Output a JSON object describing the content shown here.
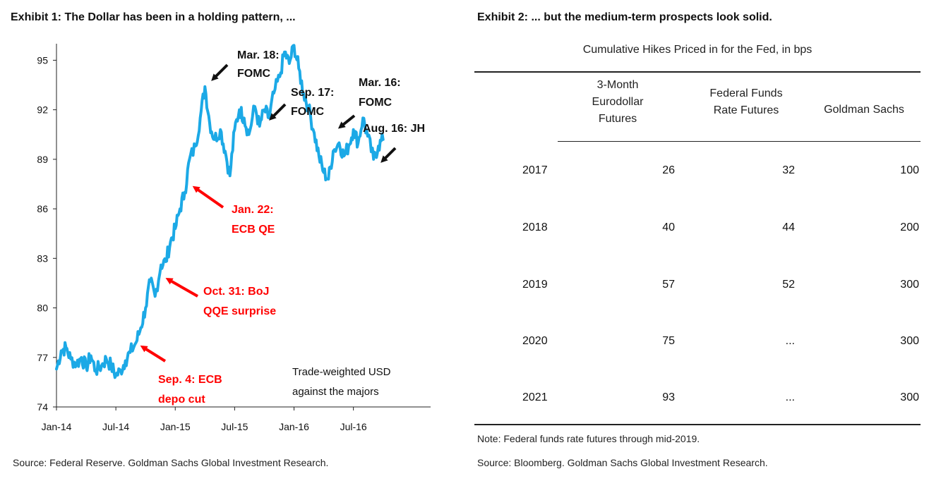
{
  "exhibit1": {
    "title": "Exhibit 1: The Dollar has been in a holding pattern, ...",
    "source": "Source: Federal Reserve. Goldman Sachs Global Investment Research.",
    "legend_note": [
      "Trade-weighted USD",
      "against the majors"
    ],
    "annotations": [
      {
        "id": "sep4",
        "lines": [
          "Sep. 4: ECB",
          "depo cut"
        ],
        "color": "#ff0000"
      },
      {
        "id": "oct31",
        "lines": [
          "Oct. 31: BoJ",
          "QQE surprise"
        ],
        "color": "#ff0000"
      },
      {
        "id": "jan22",
        "lines": [
          "Jan. 22:",
          "ECB QE"
        ],
        "color": "#ff0000"
      },
      {
        "id": "mar18",
        "lines": [
          "Mar. 18:",
          "FOMC"
        ],
        "color": "#111111"
      },
      {
        "id": "sep17",
        "lines": [
          "Sep. 17:",
          "FOMC"
        ],
        "color": "#111111"
      },
      {
        "id": "mar16",
        "lines": [
          "Mar. 16:",
          "FOMC"
        ],
        "color": "#111111"
      },
      {
        "id": "aug16",
        "lines": [
          "Aug. 16: JH"
        ],
        "color": "#111111"
      }
    ]
  },
  "exhibit2": {
    "title": "Exhibit 2: ... but the medium-term prospects look solid.",
    "caption": "Cumulative Hikes Priced in for the Fed, in bps",
    "columns": [
      [
        "3-Month",
        "Eurodollar",
        "Futures"
      ],
      [
        "Federal Funds",
        "Rate Futures"
      ],
      [
        "Goldman Sachs"
      ]
    ],
    "rows": [
      {
        "year": "2017",
        "eurodollar": "26",
        "fed_funds": "32",
        "gs": "100"
      },
      {
        "year": "2018",
        "eurodollar": "40",
        "fed_funds": "44",
        "gs": "200"
      },
      {
        "year": "2019",
        "eurodollar": "57",
        "fed_funds": "52",
        "gs": "300"
      },
      {
        "year": "2020",
        "eurodollar": "75",
        "fed_funds": "...",
        "gs": "300"
      },
      {
        "year": "2021",
        "eurodollar": "93",
        "fed_funds": "...",
        "gs": "300"
      }
    ],
    "note": "Note: Federal funds rate futures through mid-2019.",
    "source": "Source: Bloomberg. Goldman Sachs Global Investment Research."
  },
  "chart_data": [
    {
      "type": "line",
      "title": "Exhibit 1: The Dollar has been in a holding pattern, ...",
      "xlabel": "",
      "ylabel": "",
      "series_name": "Trade-weighted USD against the majors",
      "line_color": "#1ca9e6",
      "xlim": [
        2014.0,
        2017.15
      ],
      "ylim": [
        74,
        96
      ],
      "yticks": [
        74,
        77,
        80,
        83,
        86,
        89,
        92,
        95
      ],
      "xticks": [
        {
          "label": "Jan-14",
          "t": 2014.0
        },
        {
          "label": "Jul-14",
          "t": 2014.5
        },
        {
          "label": "Jan-15",
          "t": 2015.0
        },
        {
          "label": "Jul-15",
          "t": 2015.5
        },
        {
          "label": "Jan-16",
          "t": 2016.0
        },
        {
          "label": "Jul-16",
          "t": 2016.5
        }
      ],
      "points": [
        [
          2014.0,
          76.3
        ],
        [
          2014.04,
          77.4
        ],
        [
          2014.08,
          77.6
        ],
        [
          2014.12,
          76.9
        ],
        [
          2014.17,
          76.6
        ],
        [
          2014.21,
          77.0
        ],
        [
          2014.25,
          76.4
        ],
        [
          2014.29,
          77.1
        ],
        [
          2014.33,
          76.2
        ],
        [
          2014.38,
          76.5
        ],
        [
          2014.42,
          76.9
        ],
        [
          2014.46,
          76.5
        ],
        [
          2014.5,
          75.9
        ],
        [
          2014.54,
          76.2
        ],
        [
          2014.58,
          76.8
        ],
        [
          2014.62,
          77.3
        ],
        [
          2014.67,
          77.9
        ],
        [
          2014.71,
          78.8
        ],
        [
          2014.75,
          80.0
        ],
        [
          2014.79,
          81.6
        ],
        [
          2014.83,
          80.7
        ],
        [
          2014.88,
          82.6
        ],
        [
          2014.92,
          82.8
        ],
        [
          2014.96,
          84.0
        ],
        [
          2015.0,
          84.8
        ],
        [
          2015.04,
          86.0
        ],
        [
          2015.08,
          87.0
        ],
        [
          2015.12,
          89.0
        ],
        [
          2015.17,
          89.8
        ],
        [
          2015.21,
          91.5
        ],
        [
          2015.25,
          93.4
        ],
        [
          2015.29,
          91.2
        ],
        [
          2015.33,
          90.2
        ],
        [
          2015.38,
          90.8
        ],
        [
          2015.42,
          89.5
        ],
        [
          2015.46,
          88.0
        ],
        [
          2015.5,
          90.8
        ],
        [
          2015.54,
          92.0
        ],
        [
          2015.58,
          91.5
        ],
        [
          2015.62,
          90.5
        ],
        [
          2015.67,
          92.2
        ],
        [
          2015.71,
          91.0
        ],
        [
          2015.75,
          92.0
        ],
        [
          2015.79,
          91.5
        ],
        [
          2015.83,
          93.0
        ],
        [
          2015.88,
          94.0
        ],
        [
          2015.92,
          95.5
        ],
        [
          2015.96,
          94.8
        ],
        [
          2016.0,
          95.9
        ],
        [
          2016.04,
          94.5
        ],
        [
          2016.08,
          93.0
        ],
        [
          2016.12,
          92.2
        ],
        [
          2016.17,
          90.6
        ],
        [
          2016.21,
          89.2
        ],
        [
          2016.25,
          88.2
        ],
        [
          2016.29,
          87.8
        ],
        [
          2016.33,
          89.5
        ],
        [
          2016.38,
          90.0
        ],
        [
          2016.42,
          89.2
        ],
        [
          2016.46,
          89.8
        ],
        [
          2016.5,
          90.8
        ],
        [
          2016.54,
          90.0
        ],
        [
          2016.58,
          91.5
        ],
        [
          2016.62,
          90.4
        ],
        [
          2016.67,
          89.0
        ],
        [
          2016.71,
          89.8
        ],
        [
          2016.75,
          90.2
        ]
      ]
    },
    {
      "type": "table",
      "title": "Exhibit 2: ... but the medium-term prospects look solid.",
      "caption": "Cumulative Hikes Priced in for the Fed, in bps",
      "columns": [
        "3-Month Eurodollar Futures",
        "Federal Funds Rate Futures",
        "Goldman Sachs"
      ],
      "rows": [
        [
          "2017",
          26,
          32,
          100
        ],
        [
          "2018",
          40,
          44,
          200
        ],
        [
          "2019",
          57,
          52,
          300
        ],
        [
          "2020",
          75,
          "...",
          300
        ],
        [
          "2021",
          93,
          "...",
          300
        ]
      ]
    }
  ]
}
